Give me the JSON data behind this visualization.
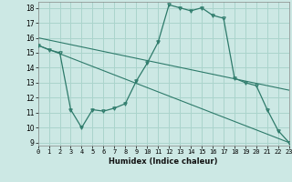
{
  "xlabel": "Humidex (Indice chaleur)",
  "x_ticks": [
    0,
    1,
    2,
    3,
    4,
    5,
    6,
    7,
    8,
    9,
    10,
    11,
    12,
    13,
    14,
    15,
    16,
    17,
    18,
    19,
    20,
    21,
    22,
    23
  ],
  "y_ticks": [
    9,
    10,
    11,
    12,
    13,
    14,
    15,
    16,
    17,
    18
  ],
  "xlim": [
    0,
    23
  ],
  "ylim": [
    8.8,
    18.4
  ],
  "bg_color": "#cce8e4",
  "grid_color": "#aad4cc",
  "line_color": "#2d7a6a",
  "line1_x": [
    0,
    1,
    2,
    3,
    4,
    5,
    6,
    7,
    8,
    9,
    10,
    11,
    12,
    13,
    14,
    15,
    16,
    17,
    18,
    19,
    20,
    21,
    22,
    23
  ],
  "line1_y": [
    15.5,
    15.2,
    15.0,
    11.2,
    10.0,
    11.2,
    11.1,
    11.3,
    11.6,
    13.1,
    14.3,
    15.7,
    18.2,
    18.0,
    17.8,
    18.0,
    17.5,
    17.3,
    13.3,
    13.0,
    12.8,
    11.2,
    9.8,
    9.0
  ],
  "line2_x": [
    0,
    23
  ],
  "line2_y": [
    15.5,
    9.0
  ],
  "line3_x": [
    0,
    23
  ],
  "line3_y": [
    16.0,
    12.5
  ]
}
